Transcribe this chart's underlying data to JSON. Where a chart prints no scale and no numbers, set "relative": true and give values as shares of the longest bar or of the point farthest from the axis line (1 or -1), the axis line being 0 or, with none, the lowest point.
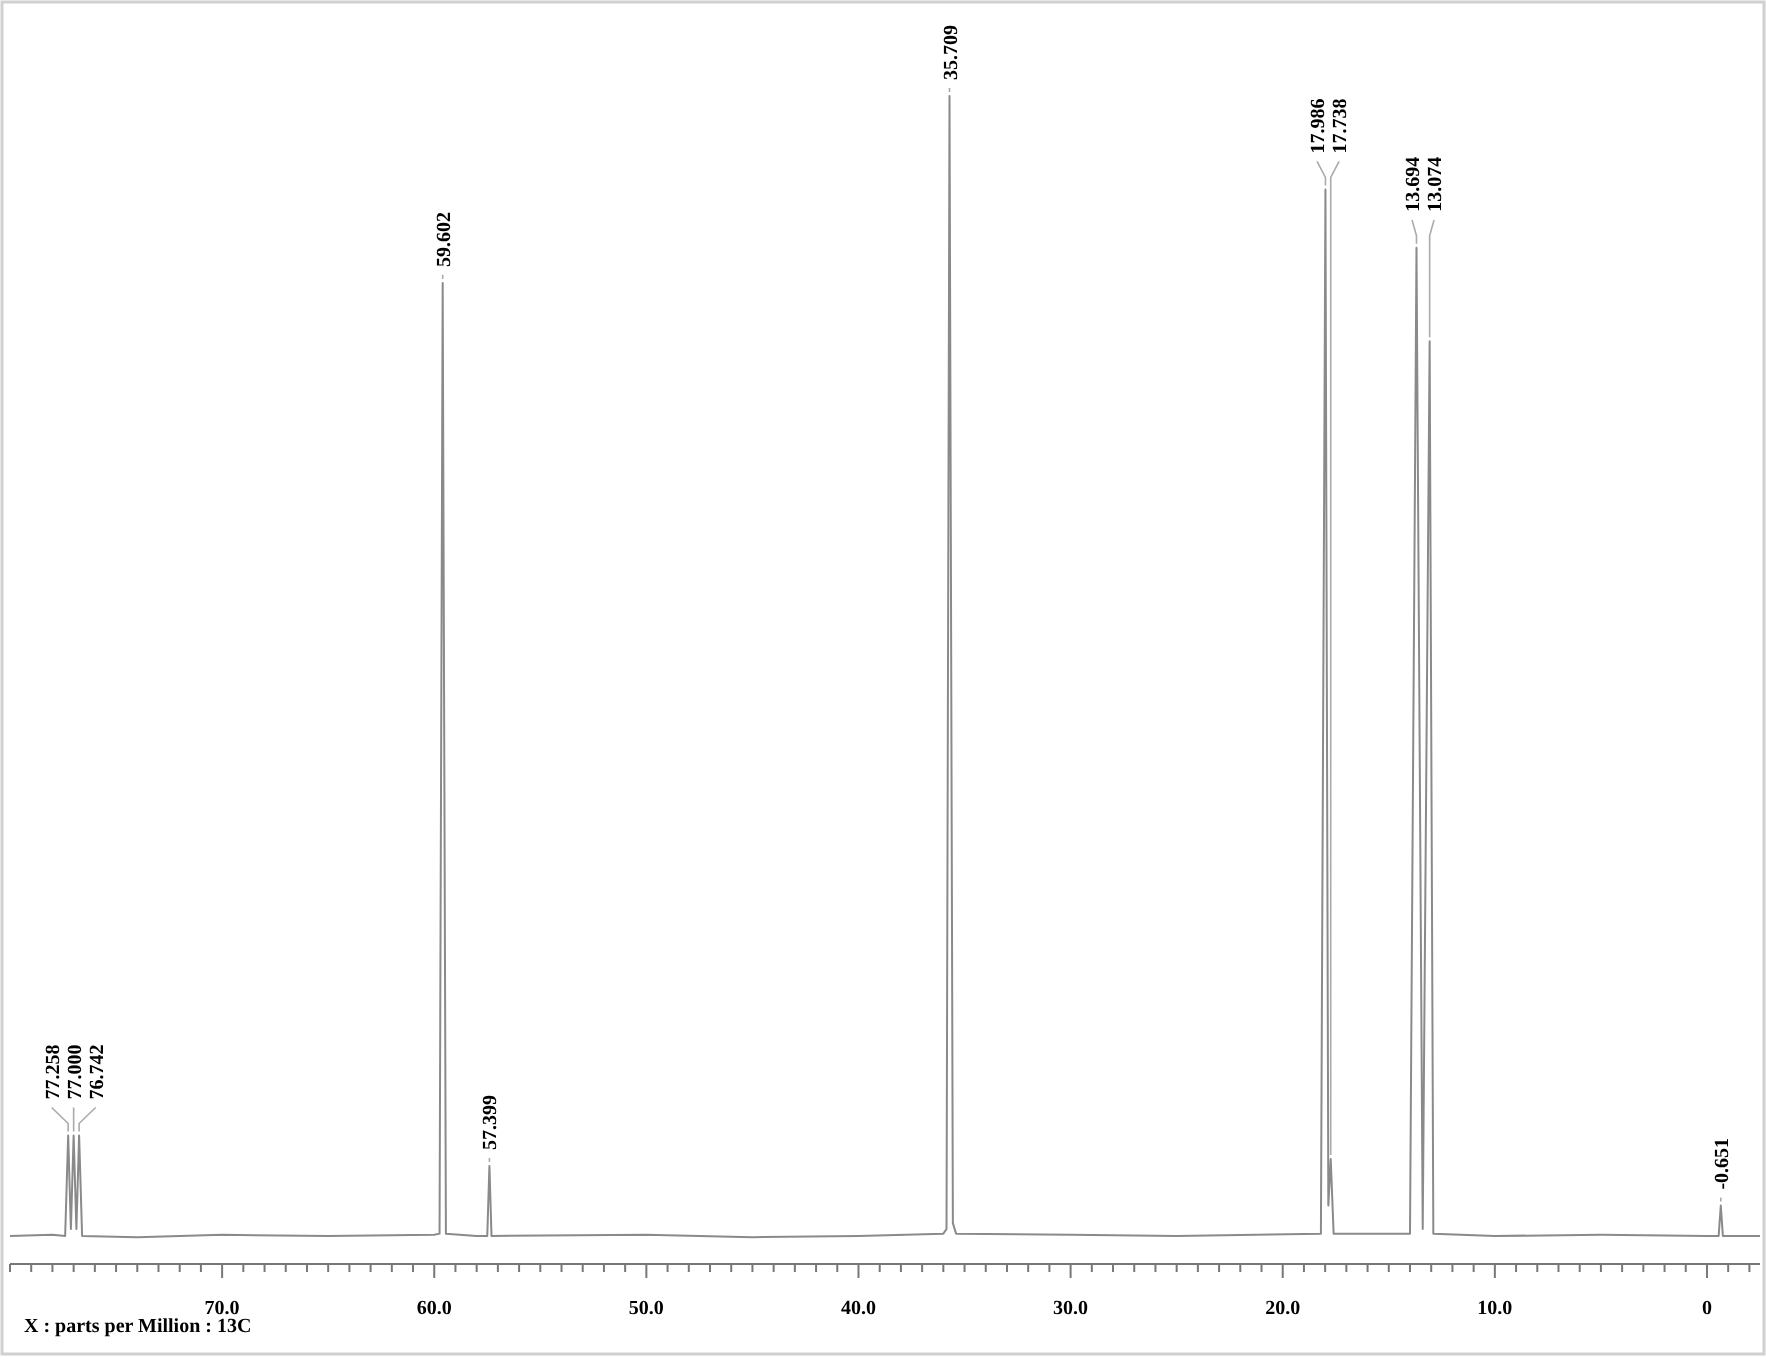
{
  "chart_data": {
    "type": "line",
    "relative": true,
    "xlabel": "X : parts per Million : 13C",
    "xlim": [
      80,
      -2.5
    ],
    "xticks": [
      {
        "value": 80,
        "label": null
      },
      {
        "value": 79,
        "label": null
      },
      {
        "value": 78,
        "label": null
      },
      {
        "value": 77,
        "label": null
      },
      {
        "value": 76,
        "label": null
      },
      {
        "value": 75,
        "label": null
      },
      {
        "value": 74,
        "label": null
      },
      {
        "value": 73,
        "label": null
      },
      {
        "value": 72,
        "label": null
      },
      {
        "value": 71,
        "label": null
      },
      {
        "value": 70,
        "label": "70.0"
      },
      {
        "value": 69,
        "label": null
      },
      {
        "value": 68,
        "label": null
      },
      {
        "value": 67,
        "label": null
      },
      {
        "value": 66,
        "label": null
      },
      {
        "value": 65,
        "label": null
      },
      {
        "value": 64,
        "label": null
      },
      {
        "value": 63,
        "label": null
      },
      {
        "value": 62,
        "label": null
      },
      {
        "value": 61,
        "label": null
      },
      {
        "value": 60,
        "label": "60.0"
      },
      {
        "value": 59,
        "label": null
      },
      {
        "value": 58,
        "label": null
      },
      {
        "value": 57,
        "label": null
      },
      {
        "value": 56,
        "label": null
      },
      {
        "value": 55,
        "label": null
      },
      {
        "value": 54,
        "label": null
      },
      {
        "value": 53,
        "label": null
      },
      {
        "value": 52,
        "label": null
      },
      {
        "value": 51,
        "label": null
      },
      {
        "value": 50,
        "label": "50.0"
      },
      {
        "value": 49,
        "label": null
      },
      {
        "value": 48,
        "label": null
      },
      {
        "value": 47,
        "label": null
      },
      {
        "value": 46,
        "label": null
      },
      {
        "value": 45,
        "label": null
      },
      {
        "value": 44,
        "label": null
      },
      {
        "value": 43,
        "label": null
      },
      {
        "value": 42,
        "label": null
      },
      {
        "value": 41,
        "label": null
      },
      {
        "value": 40,
        "label": "40.0"
      },
      {
        "value": 39,
        "label": null
      },
      {
        "value": 38,
        "label": null
      },
      {
        "value": 37,
        "label": null
      },
      {
        "value": 36,
        "label": null
      },
      {
        "value": 35,
        "label": null
      },
      {
        "value": 34,
        "label": null
      },
      {
        "value": 33,
        "label": null
      },
      {
        "value": 32,
        "label": null
      },
      {
        "value": 31,
        "label": null
      },
      {
        "value": 30,
        "label": "30.0"
      },
      {
        "value": 29,
        "label": null
      },
      {
        "value": 28,
        "label": null
      },
      {
        "value": 27,
        "label": null
      },
      {
        "value": 26,
        "label": null
      },
      {
        "value": 25,
        "label": null
      },
      {
        "value": 24,
        "label": null
      },
      {
        "value": 23,
        "label": null
      },
      {
        "value": 22,
        "label": null
      },
      {
        "value": 21,
        "label": null
      },
      {
        "value": 20,
        "label": "20.0"
      },
      {
        "value": 19,
        "label": null
      },
      {
        "value": 18,
        "label": null
      },
      {
        "value": 17,
        "label": null
      },
      {
        "value": 16,
        "label": null
      },
      {
        "value": 15,
        "label": null
      },
      {
        "value": 14,
        "label": null
      },
      {
        "value": 13,
        "label": null
      },
      {
        "value": 12,
        "label": null
      },
      {
        "value": 11,
        "label": null
      },
      {
        "value": 10,
        "label": "10.0"
      },
      {
        "value": 9,
        "label": null
      },
      {
        "value": 8,
        "label": null
      },
      {
        "value": 7,
        "label": null
      },
      {
        "value": 6,
        "label": null
      },
      {
        "value": 5,
        "label": null
      },
      {
        "value": 4,
        "label": null
      },
      {
        "value": 3,
        "label": null
      },
      {
        "value": 2,
        "label": null
      },
      {
        "value": 1,
        "label": null
      },
      {
        "value": 0,
        "label": "0"
      },
      {
        "value": -1,
        "label": null
      },
      {
        "value": -2,
        "label": null
      }
    ],
    "series": [
      {
        "color": "#8a8a8a",
        "x": [
          80,
          78,
          77.4,
          77.258,
          77.13,
          77.0,
          76.87,
          76.742,
          76.6,
          74,
          70,
          65,
          60,
          59.75,
          59.602,
          59.45,
          58,
          57.5,
          57.399,
          57.3,
          50,
          45,
          40,
          36,
          35.85,
          35.709,
          35.55,
          35.4,
          30,
          25,
          18.2,
          17.986,
          17.85,
          17.738,
          17.6,
          14,
          13.694,
          13.4,
          13.074,
          12.9,
          10,
          5,
          0,
          -0.55,
          -0.651,
          -0.75,
          -2.5
        ],
        "values": [
          0.024,
          0.025,
          0.024,
          0.11,
          0.03,
          0.11,
          0.03,
          0.11,
          0.024,
          0.023,
          0.025,
          0.024,
          0.025,
          0.026,
          0.84,
          0.026,
          0.024,
          0.024,
          0.084,
          0.024,
          0.025,
          0.023,
          0.024,
          0.026,
          0.03,
          1,
          0.035,
          0.026,
          0.025,
          0.024,
          0.026,
          0.92,
          0.05,
          0.09,
          0.026,
          0.026,
          0.87,
          0.03,
          0.79,
          0.026,
          0.024,
          0.025,
          0.024,
          0.024,
          0.05,
          0.024,
          0.024
        ]
      }
    ],
    "annotations": [
      {
        "text": "77.258",
        "x": 77.258,
        "y": 0.11
      },
      {
        "text": "77.000",
        "x": 77.0,
        "y": 0.11
      },
      {
        "text": "76.742",
        "x": 76.742,
        "y": 0.11
      },
      {
        "text": "59.602",
        "x": 59.602,
        "y": 0.84
      },
      {
        "text": "57.399",
        "x": 57.399,
        "y": 0.084
      },
      {
        "text": "35.709",
        "x": 35.709,
        "y": 1
      },
      {
        "text": "17.986",
        "x": 17.986,
        "y": 0.92
      },
      {
        "text": "17.738",
        "x": 17.738,
        "y": 0.09
      },
      {
        "text": "13.694",
        "x": 13.694,
        "y": 0.87
      },
      {
        "text": "13.074",
        "x": 13.074,
        "y": 0.79
      },
      {
        "text": "-0.651",
        "x": -0.651,
        "y": 0.05
      }
    ]
  }
}
